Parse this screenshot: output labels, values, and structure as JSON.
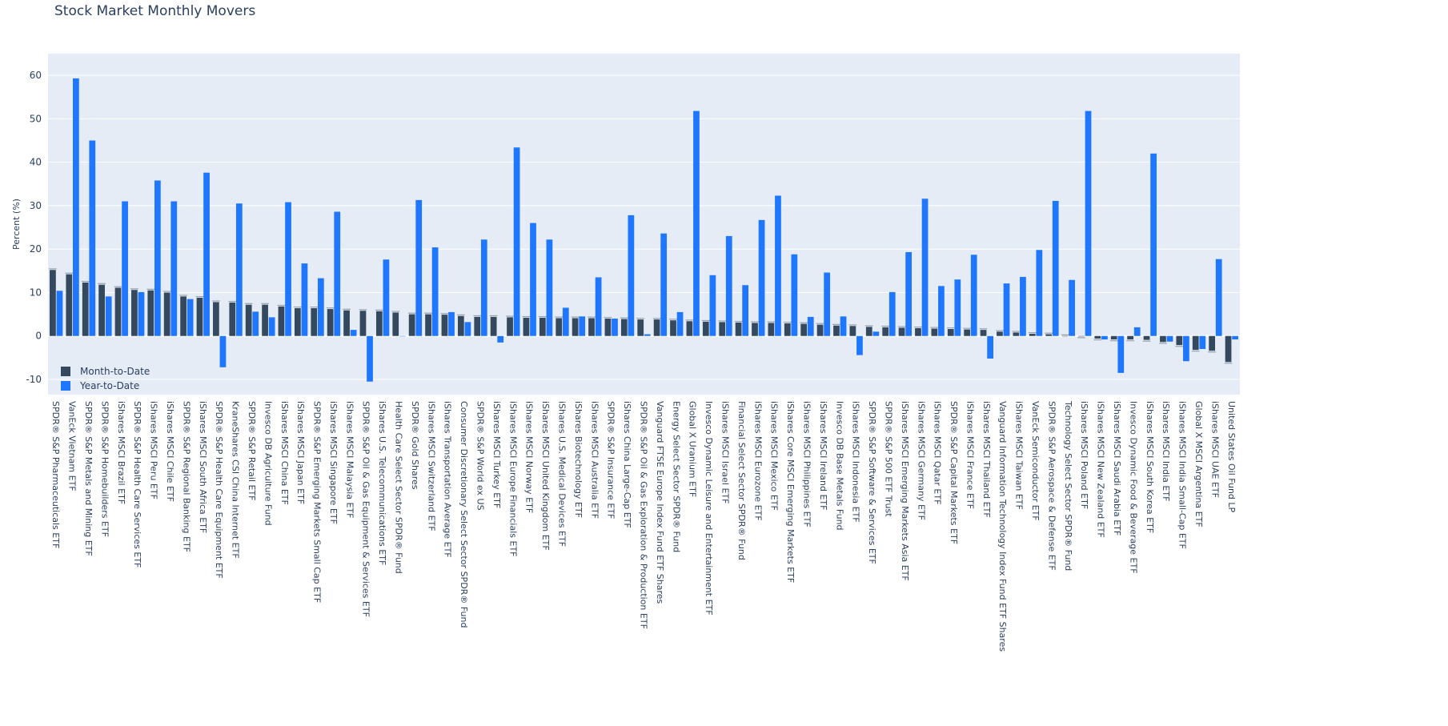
{
  "chart_data": {
    "type": "bar",
    "title": "Stock Market Monthly Movers",
    "xlabel": "",
    "ylabel": "Percent (%)",
    "ylim": [
      -13.5,
      65
    ],
    "yticks": [
      -10,
      0,
      10,
      20,
      30,
      40,
      50,
      60
    ],
    "grid": true,
    "legend_position": "bottom-left",
    "categories": [
      "SPDR® S&P Pharmaceuticals ETF",
      "VanEck Vietnam ETF",
      "SPDR® S&P Metals and Mining ETF",
      "SPDR® S&P Homebuilders ETF",
      "iShares MSCI Brazil ETF",
      "SPDR® S&P Health Care Services ETF",
      "iShares MSCI Peru ETF",
      "iShares MSCI Chile ETF",
      "SPDR® S&P Regional Banking ETF",
      "iShares MSCI South Africa ETF",
      "SPDR® S&P Health Care Equipment ETF",
      "KraneShares CSI China Internet ETF",
      "SPDR® S&P Retail ETF",
      "Invesco DB Agriculture Fund",
      "iShares MSCI China ETF",
      "iShares MSCI Japan ETF",
      "SPDR® S&P Emerging Markets Small Cap ETF",
      "iShares MSCI Singapore ETF",
      "iShares MSCI Malaysia ETF",
      "SPDR® S&P Oil & Gas Equipment & Services ETF",
      "iShares U.S. Telecommunications ETF",
      "Health Care Select Sector SPDR® Fund",
      "SPDR® Gold Shares",
      "iShares MSCI Switzerland ETF",
      "iShares Transportation Average ETF",
      "Consumer Discretionary Select Sector SPDR® Fund",
      "SPDR® S&P World ex US",
      "iShares MSCI Turkey ETF",
      "iShares MSCI Europe Financials ETF",
      "iShares MSCI Norway ETF",
      "iShares MSCI United Kingdom ETF",
      "iShares U.S. Medical Devices ETF",
      "iShares Biotechnology ETF",
      "iShares MSCI Australia ETF",
      "SPDR® S&P Insurance ETF",
      "iShares China Large-Cap ETF",
      "SPDR® S&P Oil & Gas Exploration & Production ETF",
      "Vanguard FTSE Europe Index Fund ETF Shares",
      "Energy Select Sector SPDR® Fund",
      "Global X Uranium ETF",
      "Invesco Dynamic Leisure and Entertainment ETF",
      "iShares MSCI Israel ETF",
      "Financial Select Sector SPDR® Fund",
      "iShares MSCI Eurozone ETF",
      "iShares MSCI Mexico ETF",
      "iShares Core MSCI Emerging Markets ETF",
      "iShares MSCI Philippines ETF",
      "iShares MSCI Ireland ETF",
      "Invesco DB Base Metals Fund",
      "iShares MSCI Indonesia ETF",
      "SPDR® S&P Software & Services ETF",
      "SPDR® S&P 500 ETF Trust",
      "iShares MSCI Emerging Markets Asia ETF",
      "iShares MSCI Germany ETF",
      "iShares MSCI Qatar ETF",
      "SPDR® S&P Capital Markets ETF",
      "iShares MSCI France ETF",
      "iShares MSCI Thailand ETF",
      "Vanguard Information Technology Index Fund ETF Shares",
      "iShares MSCI Taiwan ETF",
      "VanEck Semiconductor ETF",
      "SPDR® S&P Aerospace & Defense ETF",
      "Technology Select Sector SPDR® Fund",
      "iShares MSCI Poland ETF",
      "iShares MSCI New Zealand ETF",
      "iShares MSCI Saudi Arabia ETF",
      "Invesco Dynamic Food & Beverage ETF",
      "iShares MSCI South Korea ETF",
      "iShares MSCI India ETF",
      "iShares MSCI India Small-Cap ETF",
      "Global X MSCI Argentina ETF",
      "iShares MSCI UAE ETF",
      "United States Oil Fund LP"
    ],
    "series": [
      {
        "name": "Month-to-Date",
        "color": "#34495e",
        "values": [
          15.2,
          14.2,
          12.3,
          11.8,
          11.1,
          10.6,
          10.5,
          10.0,
          9.1,
          8.8,
          7.8,
          7.7,
          7.2,
          7.2,
          6.8,
          6.4,
          6.4,
          6.2,
          5.9,
          5.8,
          5.7,
          5.4,
          5.0,
          5.0,
          4.9,
          4.6,
          4.4,
          4.4,
          4.3,
          4.2,
          4.2,
          4.1,
          4.1,
          4.1,
          4.0,
          3.9,
          3.8,
          3.8,
          3.6,
          3.4,
          3.3,
          3.2,
          3.1,
          3.0,
          3.0,
          2.9,
          2.8,
          2.6,
          2.4,
          2.3,
          2.1,
          2.0,
          1.9,
          1.8,
          1.7,
          1.6,
          1.5,
          1.4,
          1.0,
          0.8,
          0.5,
          0.4,
          0.0,
          -0.1,
          -0.6,
          -0.8,
          -0.8,
          -0.9,
          -1.4,
          -2.1,
          -3.2,
          -3.4,
          -6.0
        ]
      },
      {
        "name": "Year-to-Date",
        "color": "#1f77ff",
        "values": [
          10.4,
          59.3,
          45.0,
          9.1,
          31.0,
          10.1,
          35.8,
          31.0,
          8.5,
          37.6,
          -7.2,
          30.5,
          5.6,
          4.3,
          30.8,
          16.7,
          13.3,
          28.6,
          1.4,
          -10.5,
          17.6,
          0.0,
          31.3,
          20.4,
          5.5,
          3.2,
          22.2,
          -1.5,
          43.4,
          26.0,
          22.2,
          6.5,
          4.5,
          13.5,
          4.0,
          27.8,
          0.4,
          23.6,
          5.5,
          51.8,
          14.0,
          23.0,
          11.7,
          26.7,
          32.3,
          18.8,
          4.4,
          14.6,
          4.5,
          -4.4,
          1.0,
          10.1,
          19.3,
          31.6,
          11.5,
          13.0,
          18.7,
          -5.2,
          12.1,
          13.6,
          19.8,
          31.1,
          12.9,
          51.8,
          -0.8,
          -8.5,
          2.0,
          42.0,
          -1.3,
          -5.8,
          -3.0,
          17.7,
          -0.8
        ]
      }
    ]
  }
}
